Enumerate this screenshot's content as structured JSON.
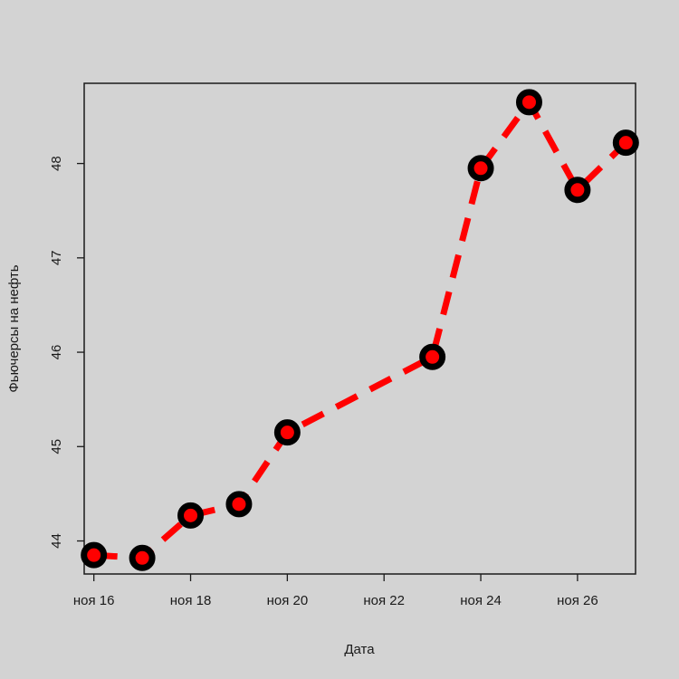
{
  "chart_data": {
    "type": "line",
    "title": "",
    "xlabel": "Дата",
    "ylabel": "Фьючерсы на нефть",
    "x": [
      "2016-11-16",
      "2016-11-17",
      "2016-11-18",
      "2016-11-19",
      "2016-11-20",
      "2016-11-23",
      "2016-11-24",
      "2016-11-25",
      "2016-11-26",
      "2016-11-27"
    ],
    "x_day": [
      16,
      17,
      18,
      19,
      20,
      23,
      24,
      25,
      26,
      27
    ],
    "series": [
      {
        "values": [
          43.85,
          43.82,
          44.27,
          44.39,
          45.15,
          45.95,
          47.95,
          48.65,
          47.72,
          48.22
        ]
      }
    ],
    "xticks": [
      {
        "day": 16,
        "label": "ноя 16"
      },
      {
        "day": 18,
        "label": "ноя 18"
      },
      {
        "day": 20,
        "label": "ноя 20"
      },
      {
        "day": 22,
        "label": "ноя 22"
      },
      {
        "day": 24,
        "label": "ноя 24"
      },
      {
        "day": 26,
        "label": "ноя 26"
      }
    ],
    "yticks": [
      {
        "value": 44,
        "label": "44"
      },
      {
        "value": 45,
        "label": "45"
      },
      {
        "value": 46,
        "label": "46"
      },
      {
        "value": 47,
        "label": "47"
      },
      {
        "value": 48,
        "label": "48"
      }
    ],
    "xlim": [
      15.8,
      27.2
    ],
    "ylim": [
      43.65,
      48.85
    ],
    "grid": false,
    "legend": "none",
    "colors": {
      "line": "#ff0000",
      "marker_outline": "#000000",
      "marker_fill": "#ff0000",
      "background": "#d3d3d3",
      "axis": "#1a1a1a"
    }
  }
}
